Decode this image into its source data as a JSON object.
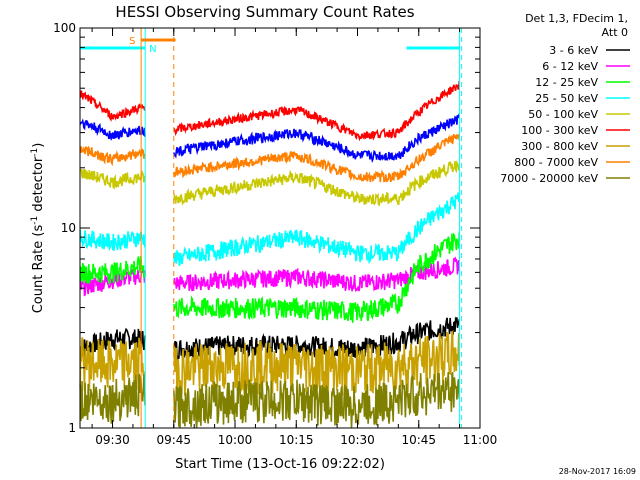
{
  "chart_data": {
    "type": "line",
    "title": "HESSI Observing Summary Count Rates",
    "xlabel": "Start Time (13-Oct-16 09:22:02)",
    "ylabel": "Count Rate (s⁻¹ detector⁻¹)",
    "y_scale": "log",
    "ylim": [
      1,
      100
    ],
    "xlim": [
      "09:22:02",
      "11:00"
    ],
    "x_ticks": [
      "09:30",
      "09:45",
      "10:00",
      "10:15",
      "10:30",
      "10:45",
      "11:00"
    ],
    "y_ticks": [
      "1",
      "10",
      "100"
    ],
    "grid": false,
    "legend_header": [
      "Det 1,3, FDecim 1,",
      "Att 0"
    ],
    "legend_placement": "right",
    "footer": "28-Nov-2017 16:09",
    "markers": {
      "S_label": "S",
      "N_label": "N",
      "saa_color": "#ff8000",
      "night_color": "#00ffff",
      "saa_start": "09:37",
      "saa_end": "09:42",
      "night_intervals": [
        [
          "09:22:02",
          "09:38"
        ],
        [
          "10:42",
          "10:55"
        ]
      ],
      "data_gap": [
        "09:38",
        "09:45"
      ]
    },
    "series": [
      {
        "name": "3 - 6 keV",
        "color": "#000000",
        "x": [
          "09:22",
          "09:30",
          "09:37",
          "09:45",
          "10:00",
          "10:15",
          "10:30",
          "10:40",
          "10:45",
          "10:55"
        ],
        "values": [
          2.5,
          2.8,
          2.8,
          2.5,
          2.6,
          2.6,
          2.5,
          2.7,
          3.0,
          3.3
        ]
      },
      {
        "name": "6 - 12 keV",
        "color": "#ff00ff",
        "x": [
          "09:22",
          "09:30",
          "09:37",
          "09:45",
          "10:00",
          "10:15",
          "10:30",
          "10:40",
          "10:45",
          "10:55"
        ],
        "values": [
          5.0,
          5.5,
          5.8,
          5.3,
          5.5,
          5.7,
          5.3,
          5.5,
          6.0,
          6.5
        ]
      },
      {
        "name": "12 - 25 keV",
        "color": "#00ff00",
        "x": [
          "09:22",
          "09:30",
          "09:37",
          "09:45",
          "10:00",
          "10:15",
          "10:30",
          "10:40",
          "10:45",
          "10:55"
        ],
        "values": [
          6.0,
          6.0,
          6.5,
          4.0,
          4.0,
          4.0,
          3.8,
          4.2,
          6.5,
          9.0
        ]
      },
      {
        "name": "25 - 50 keV",
        "color": "#00ffff",
        "x": [
          "09:22",
          "09:30",
          "09:37",
          "09:45",
          "10:00",
          "10:15",
          "10:30",
          "10:40",
          "10:45",
          "10:55"
        ],
        "values": [
          9.0,
          8.5,
          9.0,
          7.0,
          8.0,
          9.0,
          7.5,
          7.5,
          10.0,
          14.0
        ]
      },
      {
        "name": "50 - 100 keV",
        "color": "#c8c800",
        "x": [
          "09:22",
          "09:30",
          "09:37",
          "09:45",
          "10:00",
          "10:15",
          "10:30",
          "10:40",
          "10:45",
          "10:55"
        ],
        "values": [
          19,
          17,
          18,
          14,
          16,
          18,
          14,
          14,
          17,
          21
        ]
      },
      {
        "name": "100 - 300 keV",
        "color": "#ff0000",
        "x": [
          "09:22",
          "09:30",
          "09:37",
          "09:45",
          "10:00",
          "10:15",
          "10:30",
          "10:40",
          "10:45",
          "10:55"
        ],
        "values": [
          47,
          36,
          40,
          31,
          35,
          39,
          29,
          30,
          38,
          52
        ]
      },
      {
        "name": "300 - 800 keV",
        "color": "#c8a000",
        "x": [
          "09:22",
          "09:30",
          "09:37",
          "09:45",
          "10:00",
          "10:15",
          "10:30",
          "10:40",
          "10:45",
          "10:55"
        ],
        "values": [
          2.2,
          2.1,
          2.2,
          2.0,
          2.1,
          2.1,
          2.0,
          2.1,
          2.2,
          2.4
        ]
      },
      {
        "name": "800 - 7000 keV",
        "color": "#ff8000",
        "x": [
          "09:22",
          "09:30",
          "09:37",
          "09:45",
          "10:00",
          "10:15",
          "10:30",
          "10:40",
          "10:45",
          "10:55"
        ],
        "values": [
          25,
          22,
          24,
          19,
          21,
          23,
          18,
          18,
          22,
          29
        ]
      },
      {
        "name": "7000 - 20000 keV",
        "color": "#808000",
        "x": [
          "09:22",
          "09:30",
          "09:37",
          "09:45",
          "10:00",
          "10:15",
          "10:30",
          "10:40",
          "10:45",
          "10:55"
        ],
        "values": [
          1.4,
          1.4,
          1.5,
          1.3,
          1.4,
          1.4,
          1.3,
          1.4,
          1.5,
          1.6
        ]
      },
      {
        "name": "",
        "color": "#0000ff",
        "x": [
          "09:22",
          "09:30",
          "09:37",
          "09:45",
          "10:00",
          "10:15",
          "10:30",
          "10:40",
          "10:45",
          "10:55"
        ],
        "values": [
          34,
          29,
          31,
          24,
          27,
          30,
          23,
          23,
          28,
          35
        ]
      }
    ]
  }
}
